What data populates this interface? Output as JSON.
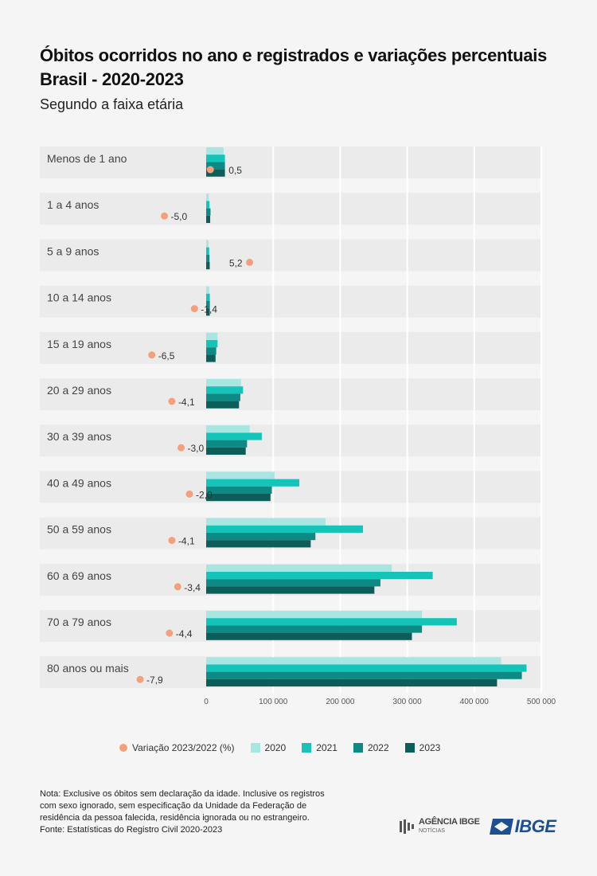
{
  "title": "Óbitos ocorridos no ano e registrados e variações percentuais\nBrasil - 2020-2023",
  "title_line1": "Óbitos ocorridos no ano e registrados e variações percentuais",
  "title_line2": "Brasil - 2020-2023",
  "subtitle": "Segundo a faixa etária",
  "colors": {
    "s2020": "#a8e6e1",
    "s2021": "#14c4b8",
    "s2022": "#0e8a84",
    "s2023": "#0b5e5a",
    "variation": "#f4a07c",
    "band": "#ebebeb",
    "grid": "#ffffff"
  },
  "legend": {
    "variation": "Variação 2023/2022 (%)",
    "s2020": "2020",
    "s2021": "2021",
    "s2022": "2022",
    "s2023": "2023"
  },
  "chart_data": {
    "type": "bar",
    "orientation": "horizontal",
    "categories": [
      "Menos de 1 ano",
      "1 a 4 anos",
      "5 a 9 anos",
      "10 a 14 anos",
      "15 a 19 anos",
      "20 a 29 anos",
      "30 a 39 anos",
      "40 a 49 anos",
      "50 a 59 anos",
      "60 a 69 anos",
      "70 a 79 anos",
      "80 anos ou mais"
    ],
    "series": [
      {
        "name": "2020",
        "values": [
          26000,
          4000,
          3500,
          4500,
          17000,
          52000,
          65000,
          102000,
          178000,
          277000,
          322000,
          440000
        ]
      },
      {
        "name": "2021",
        "values": [
          28000,
          5000,
          4500,
          5500,
          17000,
          55000,
          83000,
          139000,
          234000,
          338000,
          374000,
          478000
        ]
      },
      {
        "name": "2022",
        "values": [
          28000,
          6500,
          5000,
          5500,
          15000,
          51000,
          61000,
          98000,
          163000,
          260000,
          322000,
          471000
        ]
      },
      {
        "name": "2023",
        "values": [
          28000,
          6000,
          5300,
          5400,
          14000,
          49000,
          59000,
          96000,
          156000,
          251000,
          307000,
          434000
        ]
      }
    ],
    "variation": {
      "name": "Variação 2023/2022 (%)",
      "values": [
        0.5,
        -5.0,
        5.2,
        -1.4,
        -6.5,
        -4.1,
        -3.0,
        -2.0,
        -4.1,
        -3.4,
        -4.4,
        -7.9
      ],
      "labels": [
        "0,5",
        "-5,0",
        "5,2",
        "-1,4",
        "-6,5",
        "-4,1",
        "-3,0",
        "-2,0",
        "-4,1",
        "-3,4",
        "-4,4",
        "-7,9"
      ]
    },
    "xlim": [
      0,
      500000
    ],
    "xticks": [
      0,
      100000,
      200000,
      300000,
      400000,
      500000
    ],
    "xtick_labels": [
      "0",
      "100 000",
      "200 000",
      "300 000",
      "400 000",
      "500 000"
    ],
    "grid": true,
    "legend_position": "bottom"
  },
  "note": {
    "line1": "Nota: Exclusive os óbitos sem declaração da idade. Inclusive os registros",
    "line2": "com sexo ignorado, sem especificação da Unidade da Federação de",
    "line3": "residência da pessoa falecida, residência ignorada ou no estrangeiro.",
    "source": "Fonte: Estatísticas do Registro Civil 2020-2023"
  },
  "logos": {
    "agencia_main": "AGÊNCIA IBGE",
    "agencia_sub": "NOTÍCIAS",
    "ibge": "IBGE"
  }
}
